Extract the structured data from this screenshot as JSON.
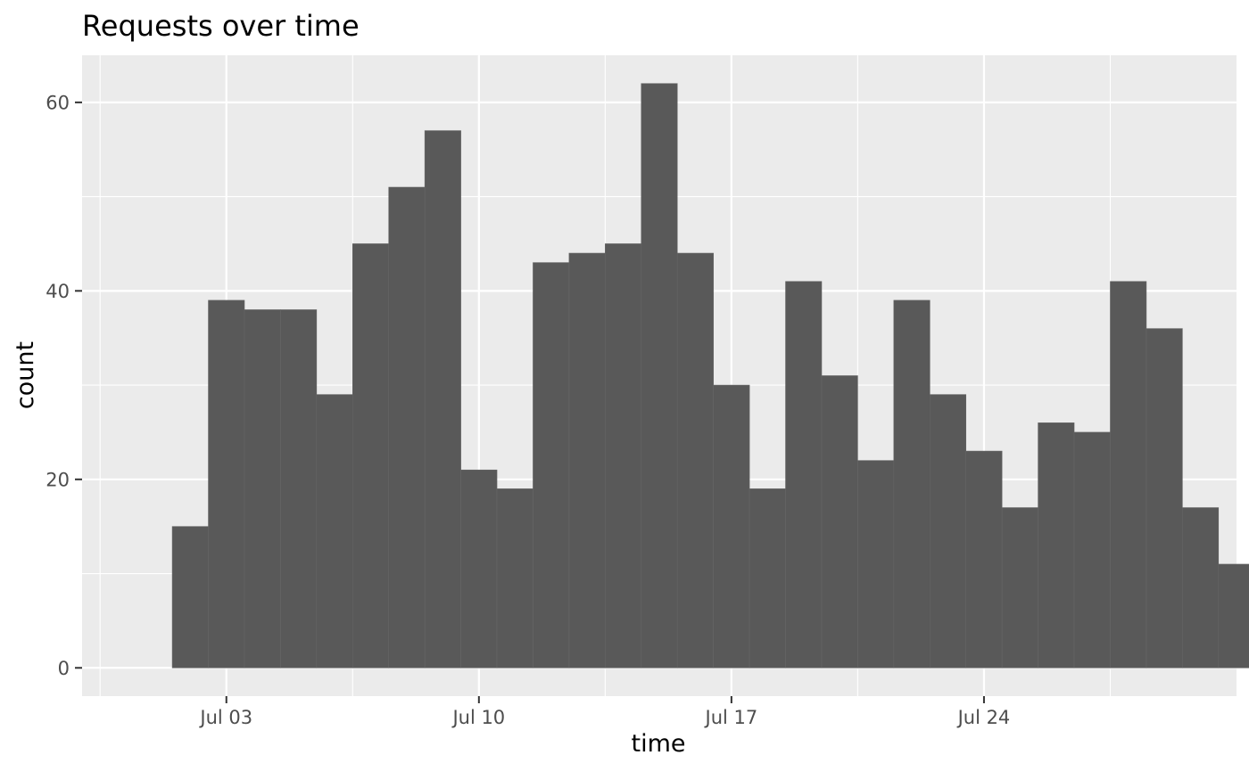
{
  "chart_data": {
    "type": "bar",
    "title": "Requests over time",
    "xlabel": "time",
    "ylabel": "count",
    "x_axis": {
      "type": "date",
      "range": [
        "2023-06-29",
        "2023-07-31"
      ],
      "tick_dates": [
        "2023-07-03",
        "2023-07-10",
        "2023-07-17",
        "2023-07-24"
      ],
      "tick_labels": [
        "Jul 03",
        "Jul 10",
        "Jul 17",
        "Jul 24"
      ],
      "minor_gridlines": true
    },
    "y_axis": {
      "range": [
        -3,
        65
      ],
      "ticks": [
        0,
        20,
        40,
        60
      ],
      "minor_gridlines": true
    },
    "grid": true,
    "legend": "none",
    "bar_color": "#595959",
    "panel_background": "#ebebeb",
    "gridline_color": "#ffffff",
    "categories": [
      "2023-07-02",
      "2023-07-03",
      "2023-07-04",
      "2023-07-05",
      "2023-07-06",
      "2023-07-07",
      "2023-07-08",
      "2023-07-09",
      "2023-07-10",
      "2023-07-11",
      "2023-07-12",
      "2023-07-13",
      "2023-07-14",
      "2023-07-15",
      "2023-07-16",
      "2023-07-17",
      "2023-07-18",
      "2023-07-19",
      "2023-07-20",
      "2023-07-21",
      "2023-07-22",
      "2023-07-23",
      "2023-07-24",
      "2023-07-25",
      "2023-07-26",
      "2023-07-27",
      "2023-07-28",
      "2023-07-29",
      "2023-07-30",
      "2023-07-31"
    ],
    "bins": [
      {
        "start": "2023-07-01 12:00",
        "end": "2023-07-02 12:00",
        "count": 15
      },
      {
        "start": "2023-07-02 12:00",
        "end": "2023-07-03 12:00",
        "count": 39
      },
      {
        "start": "2023-07-03 12:00",
        "end": "2023-07-04 12:00",
        "count": 38
      },
      {
        "start": "2023-07-04 12:00",
        "end": "2023-07-05 12:00",
        "count": 38
      },
      {
        "start": "2023-07-05 12:00",
        "end": "2023-07-06 12:00",
        "count": 29
      },
      {
        "start": "2023-07-06 12:00",
        "end": "2023-07-07 12:00",
        "count": 45
      },
      {
        "start": "2023-07-07 12:00",
        "end": "2023-07-08 12:00",
        "count": 51
      },
      {
        "start": "2023-07-08 12:00",
        "end": "2023-07-09 12:00",
        "count": 57
      },
      {
        "start": "2023-07-09 12:00",
        "end": "2023-07-10 12:00",
        "count": 21
      },
      {
        "start": "2023-07-10 12:00",
        "end": "2023-07-11 12:00",
        "count": 19
      },
      {
        "start": "2023-07-11 12:00",
        "end": "2023-07-12 12:00",
        "count": 43
      },
      {
        "start": "2023-07-12 12:00",
        "end": "2023-07-13 12:00",
        "count": 44
      },
      {
        "start": "2023-07-13 12:00",
        "end": "2023-07-14 12:00",
        "count": 45
      },
      {
        "start": "2023-07-14 12:00",
        "end": "2023-07-15 12:00",
        "count": 62
      },
      {
        "start": "2023-07-15 12:00",
        "end": "2023-07-16 12:00",
        "count": 44
      },
      {
        "start": "2023-07-16 12:00",
        "end": "2023-07-17 12:00",
        "count": 30
      },
      {
        "start": "2023-07-17 12:00",
        "end": "2023-07-18 12:00",
        "count": 19
      },
      {
        "start": "2023-07-18 12:00",
        "end": "2023-07-19 12:00",
        "count": 41
      },
      {
        "start": "2023-07-19 12:00",
        "end": "2023-07-20 12:00",
        "count": 31
      },
      {
        "start": "2023-07-20 12:00",
        "end": "2023-07-21 12:00",
        "count": 22
      },
      {
        "start": "2023-07-21 12:00",
        "end": "2023-07-22 12:00",
        "count": 39
      },
      {
        "start": "2023-07-22 12:00",
        "end": "2023-07-23 12:00",
        "count": 29
      },
      {
        "start": "2023-07-23 12:00",
        "end": "2023-07-24 12:00",
        "count": 23
      },
      {
        "start": "2023-07-24 12:00",
        "end": "2023-07-25 12:00",
        "count": 17
      },
      {
        "start": "2023-07-25 12:00",
        "end": "2023-07-26 12:00",
        "count": 26
      },
      {
        "start": "2023-07-26 12:00",
        "end": "2023-07-27 12:00",
        "count": 25
      },
      {
        "start": "2023-07-27 12:00",
        "end": "2023-07-28 12:00",
        "count": 41
      },
      {
        "start": "2023-07-28 12:00",
        "end": "2023-07-29 12:00",
        "count": 36
      },
      {
        "start": "2023-07-29 12:00",
        "end": "2023-07-30 12:00",
        "count": 17
      },
      {
        "start": "2023-07-30 12:00",
        "end": "2023-07-31 12:00",
        "count": 11
      }
    ],
    "values": [
      15,
      39,
      38,
      38,
      29,
      45,
      51,
      57,
      21,
      19,
      43,
      44,
      45,
      62,
      44,
      30,
      19,
      41,
      31,
      22,
      39,
      29,
      23,
      17,
      26,
      25,
      41,
      36,
      17,
      11
    ]
  }
}
